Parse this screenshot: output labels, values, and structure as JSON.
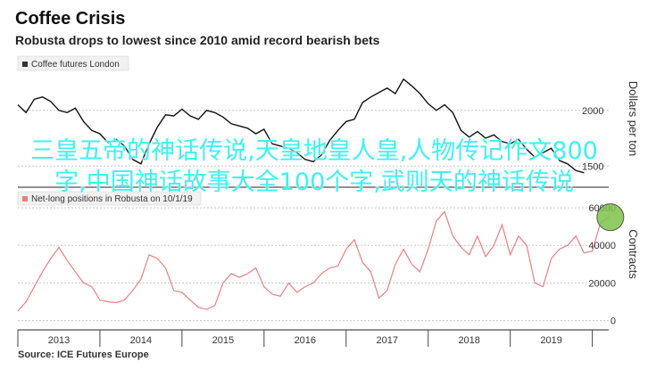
{
  "title": "Coffee Crisis",
  "subtitle": "Robusta drops to lowest since 2010 amid record bearish bets",
  "source": "Source: ICE Futures Europe",
  "overlay_text": "三皇五帝的神话传说,天皇地皇人皇,人物传记作文800字,中国神话故事大全100个字,武则天的神话传说",
  "colors": {
    "price_line": "#111111",
    "positions_line": "#e88080",
    "highlight": "#7cc24a",
    "overlay_text": "#3ff0f0"
  },
  "chart_data": [
    {
      "type": "line",
      "legend": "Coffee futures London",
      "ylabel": "Dollars per ton",
      "ylim": [
        1350,
        2350
      ],
      "yticks": [
        1500,
        2000
      ],
      "ytick_labels": [
        "1500",
        "2000"
      ],
      "xlim": [
        2012.5,
        2019.7
      ],
      "series": [
        {
          "name": "Coffee futures London",
          "x": [
            2012.5,
            2012.6,
            2012.7,
            2012.8,
            2012.9,
            2013.0,
            2013.1,
            2013.2,
            2013.3,
            2013.4,
            2013.5,
            2013.6,
            2013.7,
            2013.8,
            2013.9,
            2014.0,
            2014.1,
            2014.2,
            2014.3,
            2014.4,
            2014.5,
            2014.6,
            2014.7,
            2014.8,
            2014.9,
            2015.0,
            2015.1,
            2015.2,
            2015.3,
            2015.4,
            2015.5,
            2015.6,
            2015.7,
            2015.8,
            2015.9,
            2016.0,
            2016.1,
            2016.2,
            2016.3,
            2016.4,
            2016.5,
            2016.6,
            2016.7,
            2016.8,
            2016.9,
            2017.0,
            2017.1,
            2017.2,
            2017.3,
            2017.4,
            2017.5,
            2017.6,
            2017.7,
            2017.8,
            2017.9,
            2018.0,
            2018.1,
            2018.2,
            2018.3,
            2018.4,
            2018.5,
            2018.6,
            2018.7,
            2018.8,
            2018.9,
            2019.0,
            2019.1,
            2019.2,
            2019.3,
            2019.4
          ],
          "values": [
            2050,
            1980,
            2100,
            2120,
            2080,
            2000,
            1980,
            2020,
            1900,
            1820,
            1790,
            1710,
            1740,
            1680,
            1560,
            1520,
            1700,
            1850,
            1960,
            1950,
            2010,
            1950,
            1920,
            2000,
            1980,
            1940,
            1880,
            1860,
            1840,
            1790,
            1830,
            1700,
            1680,
            1660,
            1620,
            1560,
            1540,
            1600,
            1730,
            1820,
            1900,
            1920,
            2070,
            2120,
            2160,
            2200,
            2150,
            2280,
            2220,
            2150,
            2060,
            2000,
            2050,
            1980,
            1820,
            1760,
            1810,
            1750,
            1780,
            1720,
            1700,
            1740,
            1650,
            1580,
            1620,
            1660,
            1550,
            1520,
            1460,
            1440
          ]
        }
      ]
    },
    {
      "type": "line",
      "legend": "Net-long positions in Robusta",
      "legend_shown": "Net-long positions in Robusta on 10/1/19",
      "ylabel": "Contracts",
      "ylim": [
        -4000,
        70000
      ],
      "yticks": [
        0,
        20000,
        40000,
        60000
      ],
      "ytick_labels": [
        "0",
        "20000",
        "40000",
        "60000"
      ],
      "xlim": [
        2012.5,
        2019.7
      ],
      "x_tick_labels": [
        "2013",
        "2014",
        "2015",
        "2016",
        "2017",
        "2018",
        "2019"
      ],
      "x_tick_values": [
        2013,
        2014,
        2015,
        2016,
        2017,
        2018,
        2019
      ],
      "highlight": {
        "x": 2019.72,
        "y": 55000
      },
      "series": [
        {
          "name": "Net-long positions in Robusta",
          "x": [
            2012.5,
            2012.6,
            2012.7,
            2012.8,
            2012.9,
            2013.0,
            2013.1,
            2013.2,
            2013.3,
            2013.4,
            2013.5,
            2013.6,
            2013.7,
            2013.8,
            2013.9,
            2014.0,
            2014.1,
            2014.2,
            2014.3,
            2014.4,
            2014.5,
            2014.6,
            2014.7,
            2014.8,
            2014.9,
            2015.0,
            2015.1,
            2015.2,
            2015.3,
            2015.4,
            2015.5,
            2015.6,
            2015.7,
            2015.8,
            2015.9,
            2016.0,
            2016.1,
            2016.2,
            2016.3,
            2016.4,
            2016.5,
            2016.6,
            2016.7,
            2016.8,
            2016.9,
            2017.0,
            2017.1,
            2017.2,
            2017.3,
            2017.4,
            2017.5,
            2017.6,
            2017.7,
            2017.8,
            2017.9,
            2018.0,
            2018.1,
            2018.2,
            2018.3,
            2018.4,
            2018.5,
            2018.6,
            2018.7,
            2018.8,
            2018.9,
            2019.0,
            2019.1,
            2019.2,
            2019.3,
            2019.4,
            2019.5,
            2019.6,
            2019.7
          ],
          "values": [
            5000,
            10000,
            18000,
            26000,
            33000,
            39000,
            32000,
            26000,
            20000,
            18000,
            11000,
            10000,
            9500,
            11000,
            16000,
            22000,
            35000,
            33000,
            28000,
            16000,
            15000,
            11000,
            7000,
            6000,
            8000,
            20000,
            25000,
            23000,
            25000,
            28000,
            18000,
            14000,
            13000,
            20000,
            15000,
            18000,
            20000,
            25000,
            28000,
            29000,
            38000,
            43000,
            31000,
            26000,
            12000,
            16000,
            30000,
            38000,
            30000,
            26000,
            38000,
            53000,
            58000,
            45000,
            39000,
            35000,
            45000,
            34000,
            40000,
            51000,
            35000,
            45000,
            40000,
            20000,
            18000,
            33000,
            38000,
            40000,
            45000,
            36000,
            37000,
            52000,
            55000
          ]
        }
      ]
    }
  ]
}
